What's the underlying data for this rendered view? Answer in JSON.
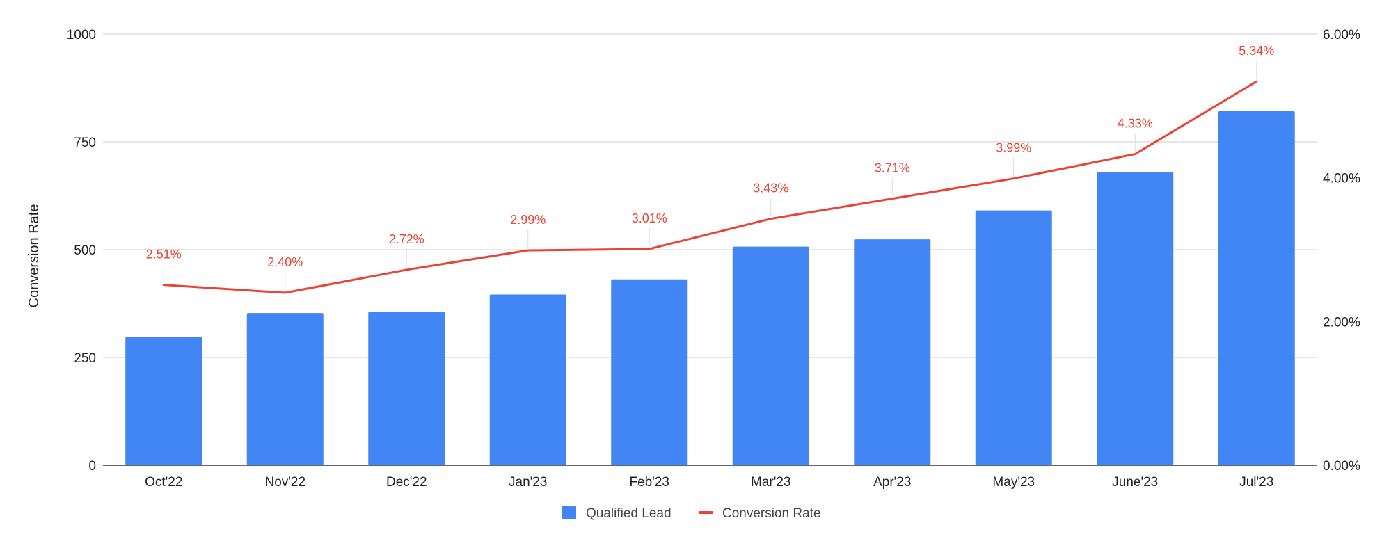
{
  "chart_data": {
    "type": "bar",
    "categories": [
      "Oct'22",
      "Nov'22",
      "Dec'22",
      "Jan'23",
      "Feb'23",
      "Mar'23",
      "Apr'23",
      "May'23",
      "June'23",
      "Jul'23"
    ],
    "series": [
      {
        "name": "Qualified Lead",
        "type": "bar",
        "axis": "left",
        "color": "#4285f4",
        "values": [
          298,
          353,
          356,
          396,
          431,
          507,
          524,
          591,
          680,
          821
        ]
      },
      {
        "name": "Conversion Rate",
        "type": "line",
        "axis": "right",
        "color": "#ea4335",
        "values": [
          2.51,
          2.4,
          2.72,
          2.99,
          3.01,
          3.43,
          3.71,
          3.99,
          4.33,
          5.34
        ],
        "data_labels": [
          "2.51%",
          "2.40%",
          "2.72%",
          "2.99%",
          "3.01%",
          "3.43%",
          "3.71%",
          "3.99%",
          "4.33%",
          "5.34%"
        ]
      }
    ],
    "ylabel": "Conversion Rate",
    "ylim": [
      0,
      1000
    ],
    "yticks": [
      "0",
      "250",
      "500",
      "750",
      "1000"
    ],
    "y2lim": [
      0,
      6
    ],
    "y2ticks": [
      "0.00%",
      "2.00%",
      "4.00%",
      "6.00%"
    ],
    "grid": true,
    "legend": "bottom"
  }
}
